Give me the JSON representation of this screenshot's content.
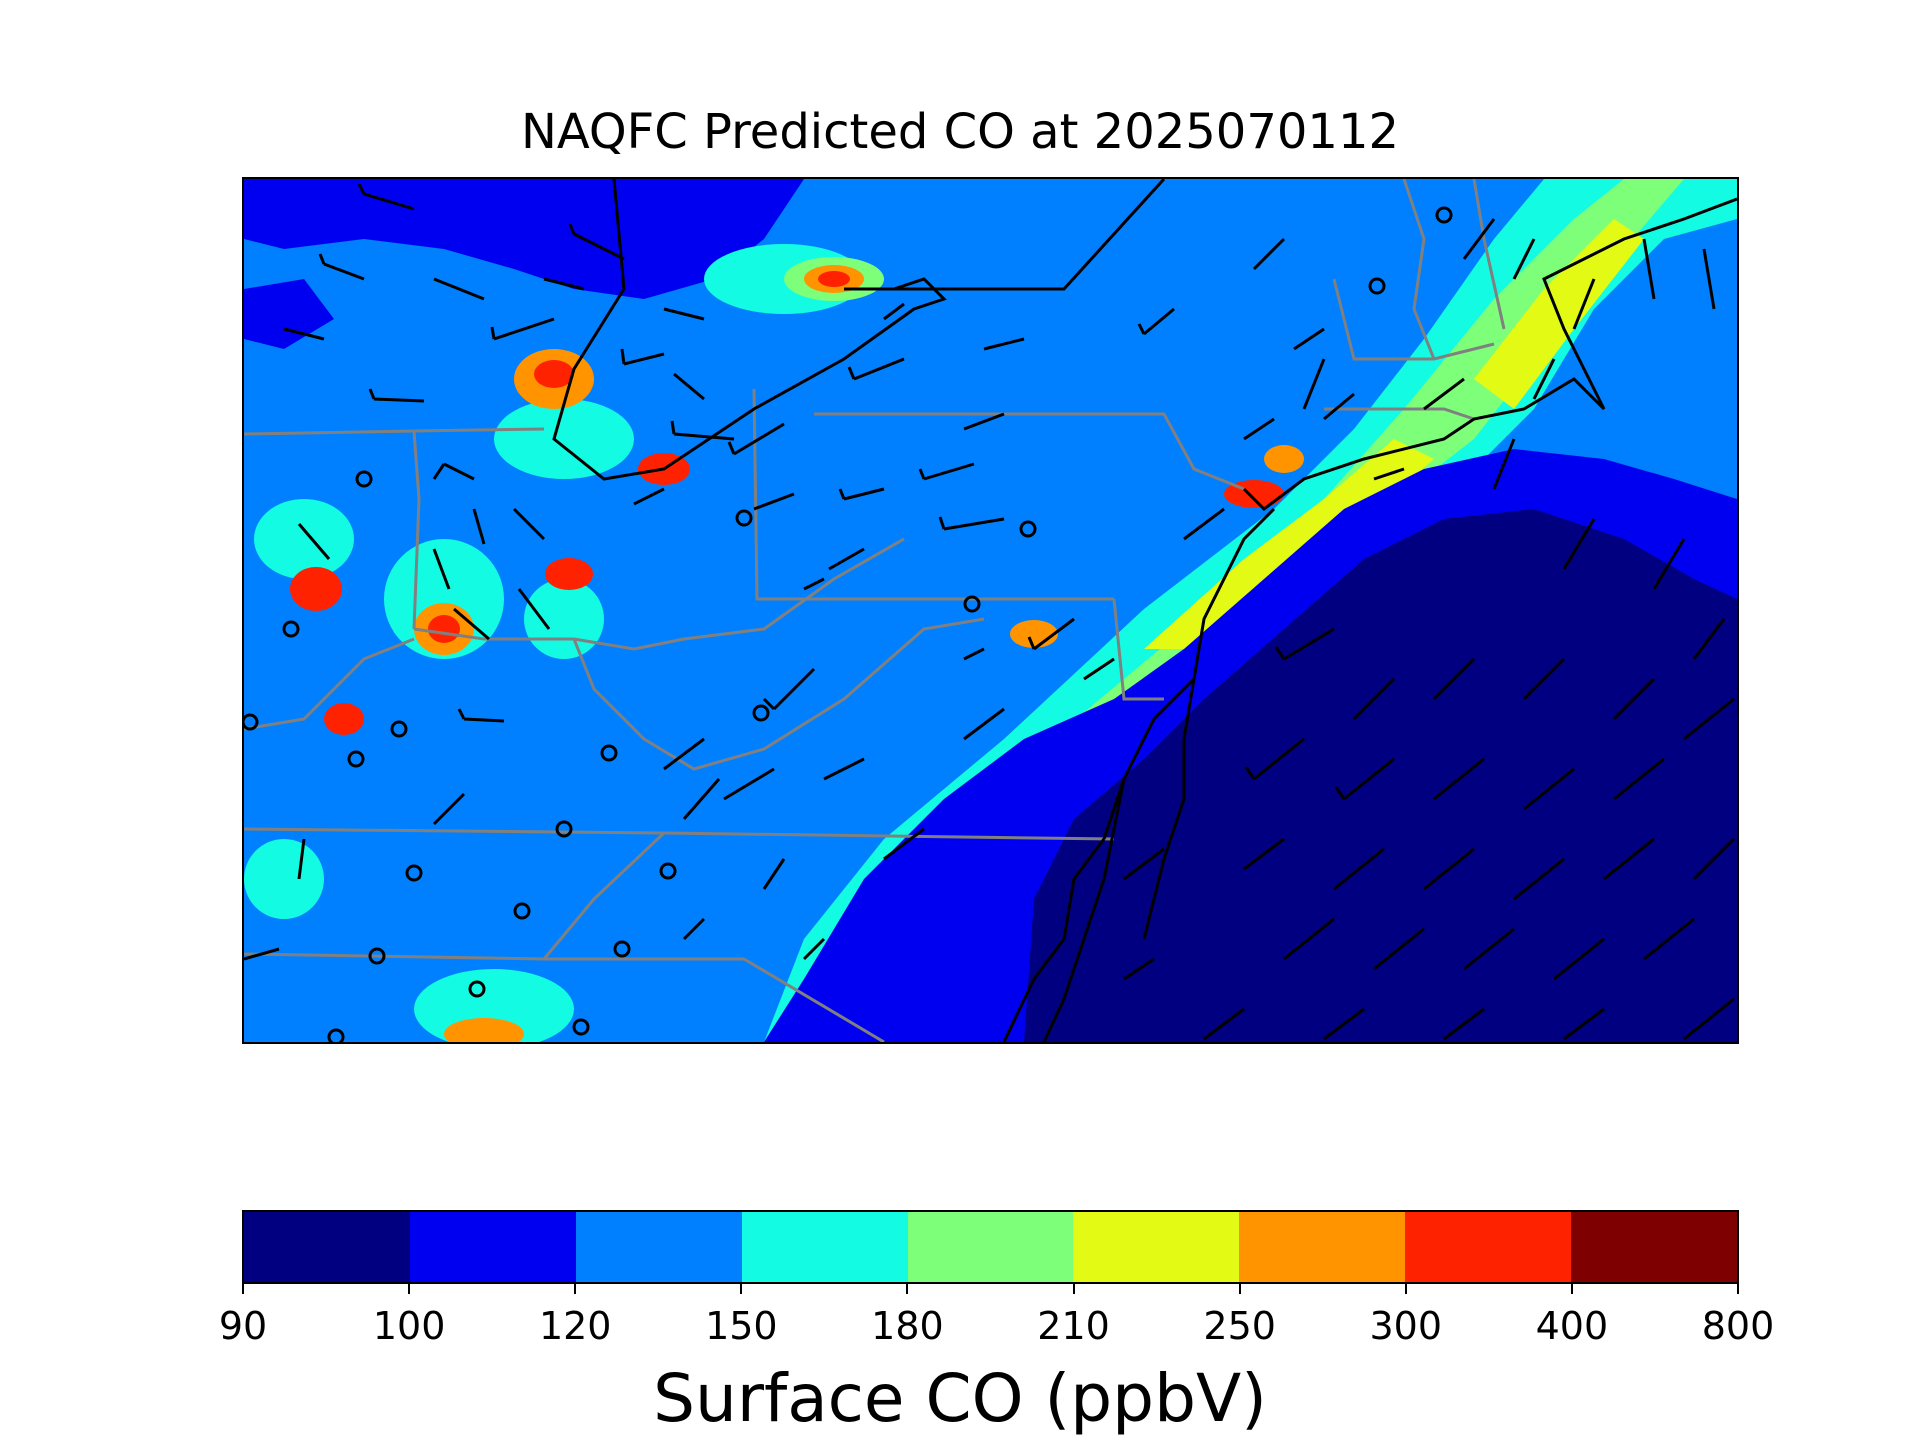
{
  "title": "NAQFC Predicted CO at 2025070112",
  "colorbar": {
    "label": "Surface CO (ppbV)",
    "ticks": [
      "90",
      "100",
      "120",
      "150",
      "180",
      "210",
      "250",
      "300",
      "400",
      "800"
    ],
    "colors": [
      "#000080",
      "#0000f1",
      "#0080ff",
      "#13fbe2",
      "#7dff7a",
      "#e3fa15",
      "#ff9400",
      "#ff2200",
      "#7f0000"
    ]
  },
  "map": {
    "region": "Northeast / Mid-Atlantic United States",
    "overlays": [
      "state-borders",
      "coastline",
      "wind-barbs",
      "calm-wind-circles"
    ]
  }
}
